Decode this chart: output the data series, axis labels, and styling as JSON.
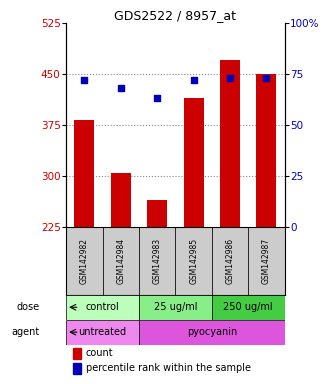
{
  "title": "GDS2522 / 8957_at",
  "samples": [
    "GSM142982",
    "GSM142984",
    "GSM142983",
    "GSM142985",
    "GSM142986",
    "GSM142987"
  ],
  "counts": [
    383,
    305,
    265,
    415,
    470,
    450
  ],
  "percentile_ranks": [
    72,
    68,
    63,
    72,
    73,
    73
  ],
  "ylim_left": [
    225,
    525
  ],
  "ylim_right": [
    0,
    100
  ],
  "yticks_left": [
    225,
    300,
    375,
    450,
    525
  ],
  "yticks_right": [
    0,
    25,
    50,
    75,
    100
  ],
  "bar_color": "#cc0000",
  "dot_color": "#0000bb",
  "bar_bottom": 225,
  "dose_groups": [
    {
      "label": "control",
      "cols": [
        0,
        1
      ],
      "color": "#bbffbb"
    },
    {
      "label": "25 ug/ml",
      "cols": [
        2,
        3
      ],
      "color": "#88ee88"
    },
    {
      "label": "250 ug/ml",
      "cols": [
        4,
        5
      ],
      "color": "#44cc44"
    }
  ],
  "agent_groups": [
    {
      "label": "untreated",
      "cols": [
        0,
        1
      ],
      "color": "#ee88ee"
    },
    {
      "label": "pyocyanin",
      "cols": [
        2,
        3,
        4,
        5
      ],
      "color": "#dd55dd"
    }
  ],
  "grid_color": "#888888",
  "left_tick_color": "#cc0000",
  "right_tick_color": "#0000bb",
  "sample_box_color": "#cccccc",
  "background_color": "#ffffff"
}
